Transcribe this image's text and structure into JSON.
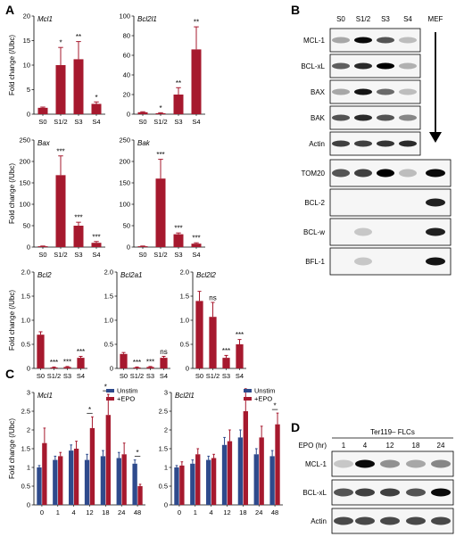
{
  "colors": {
    "red": "#a6192e",
    "blue": "#2e4a8c",
    "axis": "#000000"
  },
  "panels": {
    "a": "A",
    "b": "B",
    "c": "C",
    "d": "D"
  },
  "chart_data": [
    {
      "id": "mcl1",
      "type": "bar",
      "title": "Mcl1",
      "ylabel": "Fold change (/Ubc)",
      "categories": [
        "S0",
        "S1/2",
        "S3",
        "S4"
      ],
      "values": [
        1.3,
        10.0,
        11.2,
        2.1
      ],
      "errors": [
        0.15,
        3.6,
        3.6,
        0.4
      ],
      "significance": [
        "",
        "*",
        "**",
        "*"
      ],
      "ylim": [
        0,
        20
      ],
      "yticks": [
        0,
        5,
        10,
        15,
        20
      ],
      "color": "#a6192e"
    },
    {
      "id": "bcl2l1",
      "type": "bar",
      "title": "Bcl2l1",
      "ylabel": "",
      "categories": [
        "S0",
        "S1/2",
        "S3",
        "S4"
      ],
      "values": [
        2,
        1,
        20,
        66
      ],
      "errors": [
        0.5,
        0.5,
        7,
        23
      ],
      "significance": [
        "",
        "*",
        "**",
        "**"
      ],
      "ylim": [
        0,
        100
      ],
      "yticks": [
        0,
        20,
        40,
        60,
        80,
        100
      ],
      "color": "#a6192e"
    },
    {
      "id": "bax",
      "type": "bar",
      "title": "Bax",
      "ylabel": "Fold change (/Ubc)",
      "categories": [
        "S0",
        "S1/2",
        "S3",
        "S4"
      ],
      "values": [
        2,
        168,
        50,
        10
      ],
      "errors": [
        0.5,
        45,
        8,
        3
      ],
      "significance": [
        "",
        "***",
        "***",
        "***"
      ],
      "ylim": [
        0,
        250
      ],
      "yticks": [
        0,
        50,
        100,
        150,
        200,
        250
      ],
      "color": "#a6192e"
    },
    {
      "id": "bak",
      "type": "bar",
      "title": "Bak",
      "ylabel": "",
      "categories": [
        "S0",
        "S1/2",
        "S3",
        "S4"
      ],
      "values": [
        2,
        160,
        30,
        8
      ],
      "errors": [
        0.5,
        45,
        3,
        2
      ],
      "significance": [
        "",
        "***",
        "***",
        "***"
      ],
      "ylim": [
        0,
        250
      ],
      "yticks": [
        0,
        50,
        100,
        150,
        200,
        250
      ],
      "color": "#a6192e"
    },
    {
      "id": "bcl2",
      "type": "bar",
      "title": "Bcl2",
      "ylabel": "Fold change (/Ubc)",
      "categories": [
        "S0",
        "S1/2",
        "S3",
        "S4"
      ],
      "values": [
        0.7,
        0.02,
        0.03,
        0.22
      ],
      "errors": [
        0.06,
        0.01,
        0.01,
        0.03
      ],
      "significance": [
        "",
        "***",
        "***",
        "***"
      ],
      "ylim": [
        0,
        2.0
      ],
      "yticks": [
        0,
        0.5,
        1.0,
        1.5,
        2.0
      ],
      "yticklabels": [
        "0",
        "0.5",
        "1.0",
        "1.5",
        "2.0"
      ],
      "color": "#a6192e"
    },
    {
      "id": "bcl2a1",
      "type": "bar",
      "title": "Bcl2a1",
      "ylabel": "",
      "categories": [
        "S0",
        "S1/2",
        "S3",
        "S4"
      ],
      "values": [
        0.3,
        0.02,
        0.03,
        0.22
      ],
      "errors": [
        0.03,
        0.01,
        0.01,
        0.03
      ],
      "significance": [
        "",
        "***",
        "***",
        "ns"
      ],
      "ylim": [
        0,
        2.0
      ],
      "yticks": [
        0,
        0.5,
        1.0,
        1.5,
        2.0
      ],
      "yticklabels": [
        "0",
        "0.5",
        "1.0",
        "1.5",
        "2.0"
      ],
      "color": "#a6192e"
    },
    {
      "id": "bcl2l2",
      "type": "bar",
      "title": "Bcl2l2",
      "ylabel": "",
      "categories": [
        "S0",
        "S1/2",
        "S3",
        "S4"
      ],
      "values": [
        1.4,
        1.07,
        0.22,
        0.5
      ],
      "errors": [
        0.2,
        0.3,
        0.05,
        0.1
      ],
      "significance": [
        "",
        "ns",
        "***",
        "***"
      ],
      "ylim": [
        0,
        2.0
      ],
      "yticks": [
        0,
        0.5,
        1.0,
        1.5,
        2.0
      ],
      "yticklabels": [
        "0",
        "0.5",
        "1.0",
        "1.5",
        "2.0"
      ],
      "color": "#a6192e"
    },
    {
      "id": "mcl1_epo",
      "type": "bar",
      "title": "Mcl1",
      "ylabel": "Fold change (/Ubc)",
      "categories": [
        "0",
        "1",
        "4",
        "12",
        "18",
        "24",
        "48"
      ],
      "series": [
        {
          "name": "Unstim",
          "values": [
            1.0,
            1.2,
            1.45,
            1.2,
            1.3,
            1.25,
            1.1
          ],
          "errors": [
            0.05,
            0.1,
            0.15,
            0.15,
            0.15,
            0.15,
            0.1
          ],
          "color": "#2e4a8c"
        },
        {
          "name": "+EPO",
          "values": [
            1.65,
            1.3,
            1.5,
            2.05,
            2.4,
            1.35,
            0.5
          ],
          "errors": [
            0.4,
            0.1,
            0.2,
            0.3,
            0.55,
            0.3,
            0.05
          ],
          "color": "#a6192e"
        }
      ],
      "significance": [
        "",
        "",
        "",
        "*",
        "*",
        "",
        "*"
      ],
      "ylim": [
        0,
        3
      ],
      "yticks": [
        0,
        0.5,
        1,
        1.5,
        2,
        2.5,
        3
      ],
      "yticklabels": [
        "0",
        "0.5",
        "1",
        "1.5",
        "2",
        "2.5",
        "3"
      ],
      "legend": "top-right"
    },
    {
      "id": "bcl2l1_epo",
      "type": "bar",
      "title": "Bcl2l1",
      "ylabel": "",
      "categories": [
        "0",
        "1",
        "4",
        "12",
        "18",
        "24",
        "48"
      ],
      "series": [
        {
          "name": "Unstim",
          "values": [
            1.0,
            1.1,
            1.2,
            1.6,
            1.8,
            1.35,
            1.3
          ],
          "errors": [
            0.05,
            0.1,
            0.1,
            0.2,
            0.2,
            0.15,
            0.15
          ],
          "color": "#2e4a8c"
        },
        {
          "name": "+EPO",
          "values": [
            1.05,
            1.35,
            1.25,
            1.7,
            2.5,
            1.8,
            2.15
          ],
          "errors": [
            0.1,
            0.15,
            0.1,
            0.3,
            0.6,
            0.3,
            0.3
          ],
          "color": "#a6192e"
        }
      ],
      "significance": [
        "",
        "",
        "",
        "",
        "",
        "",
        "*"
      ],
      "ylim": [
        0,
        3
      ],
      "yticks": [
        0,
        0.5,
        1,
        1.5,
        2,
        2.5,
        3
      ],
      "yticklabels": [
        "0",
        "0.5",
        "1",
        "1.5",
        "2",
        "2.5",
        "3"
      ],
      "legend": "top-right"
    }
  ],
  "blot_b": {
    "columns": [
      "S0",
      "S1/2",
      "S3",
      "S4",
      "MEF"
    ],
    "rows_top": [
      {
        "label": "MCL-1",
        "intensity": [
          0.2,
          0.95,
          0.6,
          0.1
        ]
      },
      {
        "label": "BCL-xL",
        "intensity": [
          0.55,
          0.8,
          1.0,
          0.15
        ]
      },
      {
        "label": "BAX",
        "intensity": [
          0.2,
          0.9,
          0.5,
          0.1
        ]
      },
      {
        "label": "BAK",
        "intensity": [
          0.6,
          0.8,
          0.6,
          0.35
        ]
      },
      {
        "label": "Actin",
        "intensity": [
          0.7,
          0.7,
          0.75,
          0.8
        ]
      }
    ],
    "rows_bottom": [
      {
        "label": "TOM20",
        "intensity": [
          0.6,
          0.7,
          1.0,
          0.1,
          0.95
        ]
      },
      {
        "label": "BCL-2",
        "intensity": [
          0.0,
          0.0,
          0.0,
          0.0,
          0.85
        ]
      },
      {
        "label": "BCL-w",
        "intensity": [
          0.0,
          0.05,
          0.0,
          0.0,
          0.85
        ]
      },
      {
        "label": "BFL-1",
        "intensity": [
          0.0,
          0.05,
          0.0,
          0.0,
          0.9
        ]
      }
    ]
  },
  "blot_d": {
    "group_label": "Ter119– FLCs",
    "axis_label": "EPO (hr)",
    "columns": [
      "1",
      "4",
      "12",
      "18",
      "24"
    ],
    "rows": [
      {
        "label": "MCL-1",
        "intensity": [
          0.05,
          0.95,
          0.3,
          0.2,
          0.35
        ]
      },
      {
        "label": "BCL-xL",
        "intensity": [
          0.6,
          0.7,
          0.7,
          0.6,
          0.95
        ]
      },
      {
        "label": "Actin",
        "intensity": [
          0.65,
          0.65,
          0.65,
          0.65,
          0.65
        ]
      }
    ]
  }
}
